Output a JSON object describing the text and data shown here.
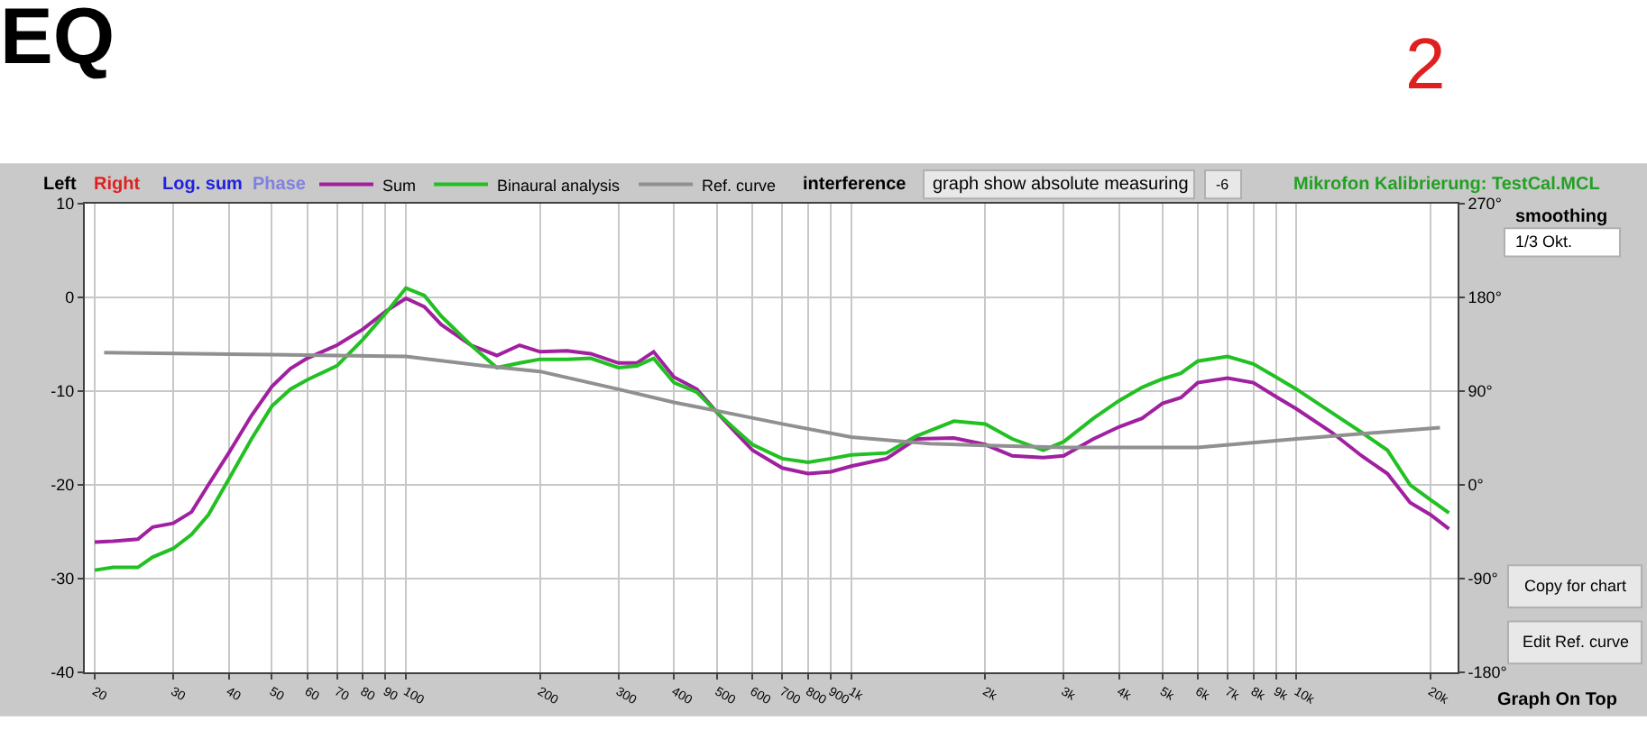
{
  "chart_data": {
    "type": "line",
    "title": "EQ",
    "x": [
      20,
      22,
      25,
      27,
      30,
      33,
      36,
      40,
      45,
      50,
      55,
      60,
      70,
      80,
      90,
      100,
      110,
      120,
      140,
      160,
      180,
      200,
      230,
      260,
      300,
      330,
      360,
      400,
      450,
      500,
      550,
      600,
      700,
      800,
      900,
      1000,
      1200,
      1400,
      1700,
      2000,
      2300,
      2700,
      3000,
      3500,
      4000,
      4500,
      5000,
      5500,
      6000,
      7000,
      8000,
      9000,
      10000,
      12000,
      14000,
      16000,
      18000,
      20000,
      22000
    ],
    "series": [
      {
        "name": "Sum",
        "color": "#a020a0",
        "values": [
          -26.1,
          -26.0,
          -25.8,
          -24.5,
          -24.1,
          -22.9,
          -20.0,
          -16.6,
          -12.6,
          -9.5,
          -7.6,
          -6.5,
          -5.1,
          -3.4,
          -1.5,
          -0.1,
          -1.0,
          -2.9,
          -5.1,
          -6.2,
          -5.1,
          -5.8,
          -5.7,
          -6.0,
          -7.0,
          -7.0,
          -5.8,
          -8.5,
          -9.8,
          -12.3,
          -14.4,
          -16.3,
          -18.2,
          -18.8,
          -18.6,
          -18.0,
          -17.2,
          -15.1,
          -15.0,
          -15.7,
          -16.9,
          -17.1,
          -16.9,
          -15.1,
          -13.8,
          -12.9,
          -11.3,
          -10.7,
          -9.1,
          -8.6,
          -9.1,
          -10.6,
          -11.9,
          -14.4,
          -16.9,
          -18.8,
          -21.9,
          -23.2,
          -24.7
        ]
      },
      {
        "name": "Binaural analysis",
        "color": "#22c022",
        "values": [
          -29.1,
          -28.8,
          -28.8,
          -27.7,
          -26.8,
          -25.3,
          -23.2,
          -19.4,
          -15.1,
          -11.6,
          -9.8,
          -8.8,
          -7.3,
          -4.5,
          -1.7,
          1.0,
          0.2,
          -2.0,
          -5.1,
          -7.5,
          -7.0,
          -6.6,
          -6.6,
          -6.5,
          -7.5,
          -7.3,
          -6.5,
          -9.1,
          -10.1,
          -12.3,
          -14.1,
          -15.7,
          -17.2,
          -17.6,
          -17.2,
          -16.8,
          -16.6,
          -14.8,
          -13.2,
          -13.5,
          -15.1,
          -16.3,
          -15.4,
          -12.9,
          -11.0,
          -9.6,
          -8.7,
          -8.1,
          -6.8,
          -6.3,
          -7.1,
          -8.5,
          -9.8,
          -12.3,
          -14.4,
          -16.3,
          -20.0,
          -21.6,
          -23.0
        ]
      },
      {
        "name": "Ref. curve",
        "color": "#909090",
        "x": [
          21,
          50,
          100,
          150,
          200,
          300,
          400,
          500,
          700,
          1000,
          1500,
          2000,
          3000,
          6000,
          10000,
          21000
        ],
        "values": [
          -5.9,
          -6.1,
          -6.3,
          -7.3,
          -7.9,
          -9.8,
          -11.2,
          -12.1,
          -13.5,
          -14.9,
          -15.6,
          -15.8,
          -16.0,
          -16.0,
          -15.1,
          -13.9
        ]
      }
    ],
    "log": "x",
    "xlim": [
      19,
      23000
    ],
    "xticks": [
      20,
      30,
      40,
      50,
      60,
      70,
      80,
      90,
      100,
      200,
      300,
      400,
      500,
      600,
      700,
      800,
      900,
      {
        "value": 1000,
        "label": "1k"
      },
      {
        "value": 2000,
        "label": "2k"
      },
      {
        "value": 3000,
        "label": "3k"
      },
      {
        "value": 4000,
        "label": "4k"
      },
      {
        "value": 5000,
        "label": "5k"
      },
      {
        "value": 6000,
        "label": "6k"
      },
      {
        "value": 7000,
        "label": "7k"
      },
      {
        "value": 8000,
        "label": "8k"
      },
      {
        "value": 9000,
        "label": "9k"
      },
      {
        "value": 10000,
        "label": "10k"
      },
      {
        "value": 20000,
        "label": "20k"
      }
    ],
    "ylim": [
      -40,
      10
    ],
    "yticks": [
      -40,
      -30,
      -20,
      -10,
      0,
      10
    ],
    "y2lim": [
      -180,
      270
    ],
    "y2ticks": [
      {
        "value": -180,
        "label": "-180°"
      },
      {
        "value": -90,
        "label": "-90°"
      },
      {
        "value": 0,
        "label": "0°"
      },
      {
        "value": 90,
        "label": "90°"
      },
      {
        "value": 180,
        "label": "180°"
      },
      {
        "value": 270,
        "label": "270°"
      }
    ],
    "grid": true,
    "legend": "top",
    "marker": "none",
    "line_style": "solid",
    "annotations": [
      "Left",
      "Right",
      "Log. sum",
      "Phase",
      "interference",
      "graph show absolute measuring",
      "-6",
      "Mikrofon Kalibrierung: TestCal.MCL",
      "smoothing",
      "1/3 Okt.",
      "Copy for chart",
      "Edit Ref. curve",
      "Graph On Top",
      "2"
    ]
  }
}
